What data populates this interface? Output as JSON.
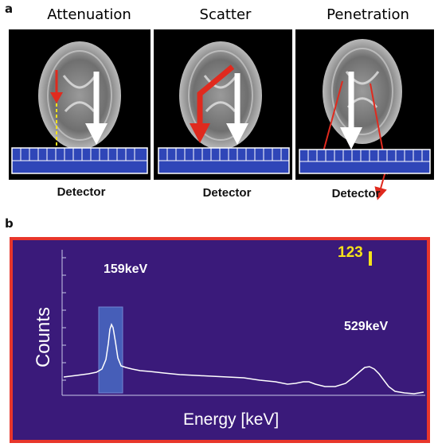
{
  "panel_a": {
    "letter": "a",
    "titles": [
      "Attenuation",
      "Scatter",
      "Penetration"
    ],
    "detector_label": "Detector"
  },
  "panel_b": {
    "letter": "b",
    "peak1_label": "159keV",
    "peak2_label": "529keV",
    "counter_value": "123",
    "xlabel": "Energy [keV]",
    "ylabel": "Counts"
  },
  "colors": {
    "detector_blue": "#2f46b8",
    "arrow_red": "#e02a1e",
    "frame_red": "#e8362b",
    "spectrum_bg": "#3a1a7a",
    "highlight": "#4a6fc8",
    "yellow": "#f5e21a"
  }
}
